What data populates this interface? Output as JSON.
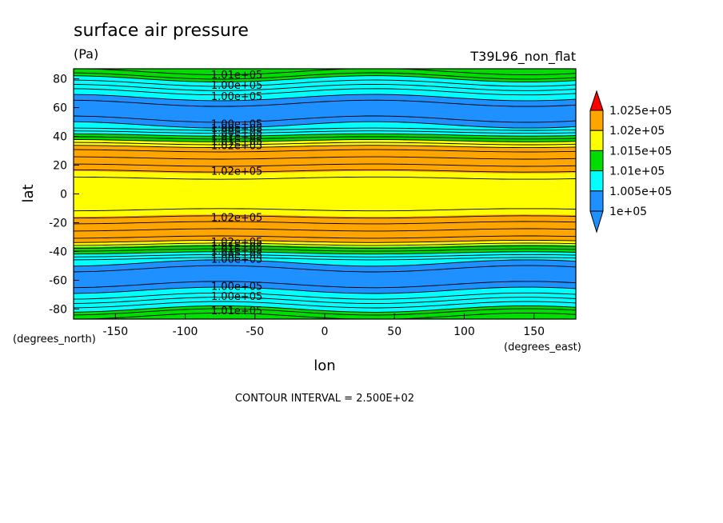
{
  "chart_data": {
    "type": "heatmap",
    "title": "surface air pressure",
    "units": "(Pa)",
    "experiment": "T39L96_non_flat",
    "xlabel": "lon",
    "ylabel": "lat",
    "x_units": "(degrees_east)",
    "y_units": "(degrees_north)",
    "xlim": [
      -180,
      180
    ],
    "ylim": [
      -87,
      87
    ],
    "x_ticks": [
      -150,
      -100,
      -50,
      0,
      50,
      100,
      150
    ],
    "x_tick_labels": [
      "-150",
      "-100",
      "-50",
      "0",
      "50",
      "100",
      "150"
    ],
    "y_ticks": [
      -80,
      -60,
      -40,
      -20,
      0,
      20,
      40,
      60,
      80
    ],
    "y_tick_labels": [
      "-80",
      "-60",
      "-40",
      "-20",
      "0",
      "20",
      "40",
      "60",
      "80"
    ],
    "footer": "CONTOUR INTERVAL = 2.500E+02",
    "contour_interval": 250,
    "colorbar": {
      "levels": [
        100000,
        100500,
        101000,
        101500,
        102000,
        102500
      ],
      "labels": [
        "1e+05",
        "1.005e+05",
        "1.01e+05",
        "1.015e+05",
        "1.02e+05",
        "1.025e+05"
      ],
      "colors": [
        "#1e90ff",
        "#00ffff",
        "#00dd00",
        "#ffff00",
        "#ffa500",
        "#ff0000"
      ],
      "under_color": "#1e90ff",
      "over_color": "#ff0000"
    },
    "bands": [
      {
        "lat_min": -87,
        "lat_max": -80,
        "color": "#00dd00"
      },
      {
        "lat_min": -80,
        "lat_max": -67,
        "color": "#00ffff"
      },
      {
        "lat_min": -67,
        "lat_max": -48,
        "color": "#1e90ff"
      },
      {
        "lat_min": -48,
        "lat_max": -41,
        "color": "#00ffff"
      },
      {
        "lat_min": -41,
        "lat_max": -36,
        "color": "#00dd00"
      },
      {
        "lat_min": -36,
        "lat_max": -33,
        "color": "#ffff00"
      },
      {
        "lat_min": -33,
        "lat_max": -15,
        "color": "#ffa500"
      },
      {
        "lat_min": -15,
        "lat_max": 15,
        "color": "#ffff00"
      },
      {
        "lat_min": 15,
        "lat_max": 33,
        "color": "#ffa500"
      },
      {
        "lat_min": 33,
        "lat_max": 37,
        "color": "#ffff00"
      },
      {
        "lat_min": 37,
        "lat_max": 41,
        "color": "#00dd00"
      },
      {
        "lat_min": 41,
        "lat_max": 48,
        "color": "#00ffff"
      },
      {
        "lat_min": 48,
        "lat_max": 67,
        "color": "#1e90ff"
      },
      {
        "lat_min": 67,
        "lat_max": 80,
        "color": "#00ffff"
      },
      {
        "lat_min": 80,
        "lat_max": 87,
        "color": "#00dd00"
      }
    ],
    "contour_lats": [
      -85,
      -82,
      -80,
      -77,
      -74,
      -71,
      -67,
      -63,
      -52,
      -48,
      -45,
      -43,
      -41,
      -39,
      -37,
      -35,
      -33,
      -30,
      -25,
      -20,
      -16,
      -11,
      11,
      16,
      20,
      25,
      30,
      33,
      35,
      37,
      39,
      41,
      43,
      45,
      48,
      52,
      63,
      67,
      71,
      74,
      77,
      80,
      82,
      85
    ],
    "contour_labels": [
      {
        "lat": 83,
        "lon": -63,
        "text": "1.01e+05"
      },
      {
        "lat": 76,
        "lon": -63,
        "text": "1.00e+05"
      },
      {
        "lat": 68,
        "lon": -63,
        "text": "1.00e+05"
      },
      {
        "lat": 49,
        "lon": -63,
        "text": "1.00e+05"
      },
      {
        "lat": 46,
        "lon": -63,
        "text": "1.00e+05"
      },
      {
        "lat": 43,
        "lon": -63,
        "text": "1.00e+05"
      },
      {
        "lat": 40,
        "lon": -63,
        "text": "1.01e+05"
      },
      {
        "lat": 37,
        "lon": -63,
        "text": "1.01e+05"
      },
      {
        "lat": 34,
        "lon": -63,
        "text": "1.02e+05"
      },
      {
        "lat": 16,
        "lon": -63,
        "text": "1.02e+05"
      },
      {
        "lat": -16,
        "lon": -63,
        "text": "1.02e+05"
      },
      {
        "lat": -33,
        "lon": -63,
        "text": "1.02e+05"
      },
      {
        "lat": -36,
        "lon": -63,
        "text": "1.01e+05"
      },
      {
        "lat": -39,
        "lon": -63,
        "text": "1.01e+05"
      },
      {
        "lat": -42,
        "lon": -63,
        "text": "1.00e+05"
      },
      {
        "lat": -45,
        "lon": -63,
        "text": "1.00e+05"
      },
      {
        "lat": -64,
        "lon": -63,
        "text": "1.00e+05"
      },
      {
        "lat": -71,
        "lon": -63,
        "text": "1.00e+05"
      },
      {
        "lat": -81,
        "lon": -63,
        "text": "1.01e+05"
      }
    ]
  }
}
